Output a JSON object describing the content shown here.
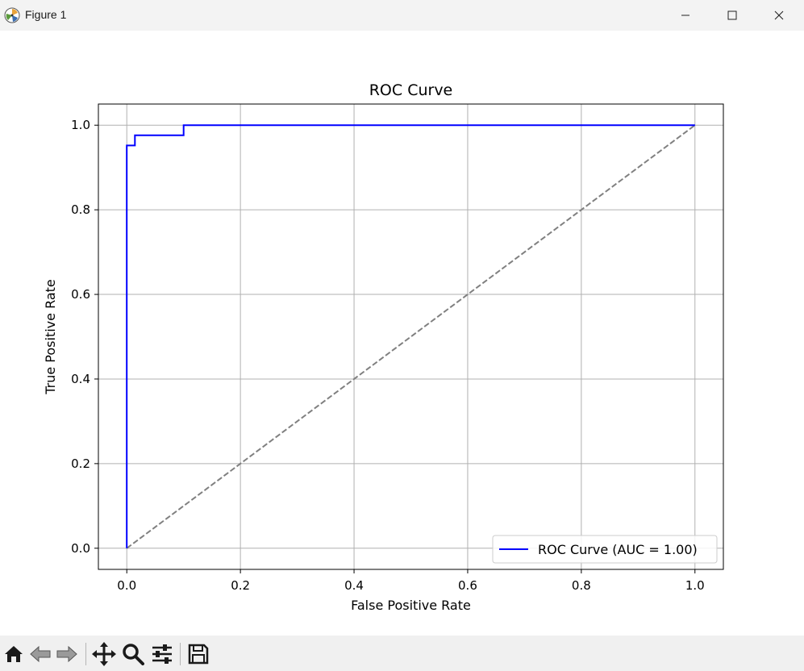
{
  "window": {
    "title": "Figure 1"
  },
  "toolbar": {
    "icons": [
      "home-icon",
      "back-icon",
      "forward-icon",
      "pan-icon",
      "zoom-icon",
      "configure-subplots-icon",
      "save-icon"
    ]
  },
  "chart_data": {
    "type": "line",
    "title": "ROC Curve",
    "xlabel": "False Positive Rate",
    "ylabel": "True Positive Rate",
    "xlim": [
      -0.05,
      1.05
    ],
    "ylim": [
      -0.05,
      1.05
    ],
    "xticks": [
      "0.0",
      "0.2",
      "0.4",
      "0.6",
      "0.8",
      "1.0"
    ],
    "yticks": [
      "0.0",
      "0.2",
      "0.4",
      "0.6",
      "0.8",
      "1.0"
    ],
    "grid": true,
    "legend": {
      "placement": "lower right",
      "entries": [
        "ROC Curve (AUC = 1.00)"
      ]
    },
    "series": [
      {
        "name": "ROC Curve (AUC = 1.00)",
        "color": "#0000ff",
        "style": "solid",
        "x": [
          0.0,
          0.0,
          0.0,
          0.0143,
          0.0143,
          0.1,
          0.1,
          1.0
        ],
        "y": [
          0.0,
          0.0,
          0.952,
          0.952,
          0.976,
          0.976,
          1.0,
          1.0
        ]
      },
      {
        "color": "#808080",
        "style": "dashed",
        "x": [
          0.0,
          1.0
        ],
        "y": [
          0.0,
          1.0
        ]
      }
    ]
  }
}
